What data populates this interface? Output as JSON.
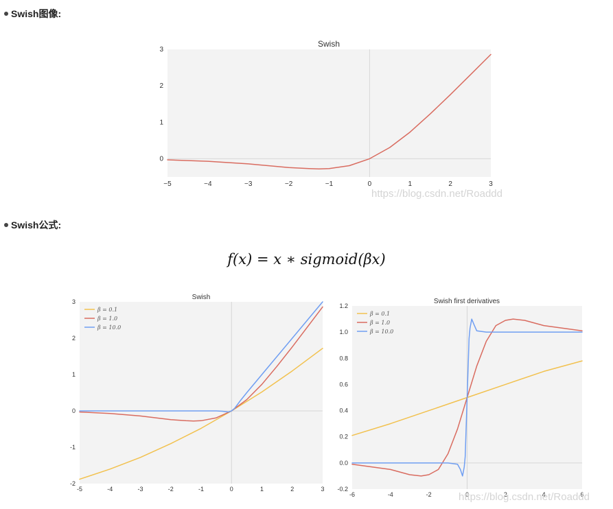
{
  "section1": {
    "title": "Swish图像:"
  },
  "section2": {
    "title": "Swish公式:"
  },
  "formula": "f(x) = x ∗ sigmoid(βx)",
  "watermark": "https://blog.csdn.net/Roaddd",
  "colors": {
    "swish": "#d96b5f",
    "beta_0_1": "#f2c14e",
    "beta_1_0": "#d96b5f",
    "beta_10_0": "#6f9ef2",
    "plot_bg": "#f3f3f3",
    "zero_line": "#d6d6d6"
  },
  "chart_data": [
    {
      "type": "line",
      "title": "Swish",
      "xlim": [
        -5,
        3
      ],
      "ylim": [
        -0.5,
        3
      ],
      "x_ticks": [
        "−5",
        "−4",
        "−3",
        "−2",
        "−1",
        "0",
        "1",
        "2",
        "3"
      ],
      "y_ticks": [
        "0",
        "1",
        "2",
        "3"
      ],
      "legend": "none",
      "series": [
        {
          "x": [
            -5,
            -4,
            -3,
            -2,
            -1.5,
            -1.25,
            -1,
            -0.5,
            0,
            0.5,
            1,
            1.5,
            2,
            2.5,
            3
          ],
          "y": [
            -0.03,
            -0.07,
            -0.14,
            -0.24,
            -0.27,
            -0.28,
            -0.27,
            -0.19,
            0,
            0.31,
            0.73,
            1.23,
            1.76,
            2.31,
            2.86
          ]
        }
      ]
    },
    {
      "type": "line",
      "title": "Swish",
      "xlim": [
        -5,
        3
      ],
      "ylim": [
        -2,
        3
      ],
      "x_ticks": [
        "-5",
        "-4",
        "-3",
        "-2",
        "-1",
        "0",
        "1",
        "2",
        "3"
      ],
      "y_ticks": [
        "-2",
        "-1",
        "0",
        "1",
        "2",
        "3"
      ],
      "legend": "top-left",
      "series": [
        {
          "name": "β = 0.1",
          "x": [
            -5,
            -4,
            -3,
            -2,
            -1,
            0,
            1,
            2,
            3
          ],
          "y": [
            -1.88,
            -1.6,
            -1.28,
            -0.9,
            -0.48,
            0,
            0.52,
            1.1,
            1.72
          ]
        },
        {
          "name": "β = 1.0",
          "x": [
            -5,
            -4,
            -3,
            -2,
            -1.5,
            -1.25,
            -1,
            -0.5,
            0,
            0.5,
            1,
            1.5,
            2,
            2.5,
            3
          ],
          "y": [
            -0.03,
            -0.07,
            -0.14,
            -0.24,
            -0.27,
            -0.28,
            -0.27,
            -0.19,
            0,
            0.31,
            0.73,
            1.23,
            1.76,
            2.31,
            2.86
          ]
        },
        {
          "name": "β = 10.0",
          "x": [
            -5,
            -1,
            -0.5,
            -0.3,
            -0.2,
            -0.1,
            0,
            0.1,
            0.2,
            0.3,
            0.5,
            1,
            2,
            3
          ],
          "y": [
            0,
            0,
            0,
            -0.01,
            -0.02,
            -0.03,
            0,
            0.07,
            0.18,
            0.29,
            0.5,
            1,
            2,
            3
          ]
        }
      ]
    },
    {
      "type": "line",
      "title": "Swish first derivatives",
      "xlim": [
        -6,
        6
      ],
      "ylim": [
        -0.2,
        1.2
      ],
      "x_ticks": [
        "-6",
        "-4",
        "-2",
        "0",
        "2",
        "4",
        "6"
      ],
      "y_ticks": [
        "-0.2",
        "0.0",
        "0.2",
        "0.4",
        "0.6",
        "0.8",
        "1.0",
        "1.2"
      ],
      "legend": "top-left",
      "series": [
        {
          "name": "β = 0.1",
          "x": [
            -6,
            -4,
            -2,
            0,
            2,
            4,
            6
          ],
          "y": [
            0.21,
            0.3,
            0.4,
            0.5,
            0.6,
            0.7,
            0.78
          ]
        },
        {
          "name": "β = 1.0",
          "x": [
            -6,
            -4,
            -3,
            -2.4,
            -2,
            -1.5,
            -1,
            -0.5,
            0,
            0.5,
            1,
            1.5,
            2,
            2.4,
            3,
            4,
            6
          ],
          "y": [
            -0.01,
            -0.05,
            -0.09,
            -0.1,
            -0.09,
            -0.05,
            0.07,
            0.26,
            0.5,
            0.74,
            0.93,
            1.05,
            1.09,
            1.1,
            1.09,
            1.05,
            1.01
          ]
        },
        {
          "name": "β = 10.0",
          "x": [
            -6,
            -1,
            -0.5,
            -0.35,
            -0.24,
            -0.15,
            -0.1,
            0,
            0.1,
            0.15,
            0.24,
            0.35,
            0.5,
            1,
            6
          ],
          "y": [
            0,
            0,
            -0.01,
            -0.05,
            -0.1,
            -0.03,
            0.05,
            0.5,
            0.95,
            1.03,
            1.1,
            1.06,
            1.01,
            1,
            1
          ]
        }
      ]
    }
  ]
}
